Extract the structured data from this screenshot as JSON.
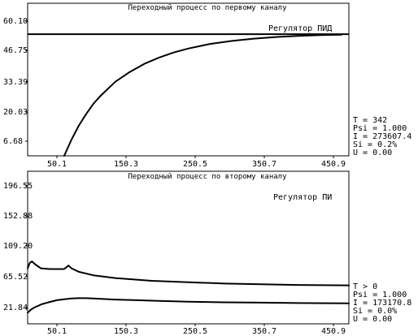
{
  "chart_data": [
    {
      "type": "line",
      "title": "Переходный процесс по первому каналу",
      "regulator": "Регулятор  ПИД",
      "y_ticks": [
        "60.10",
        "46.75",
        "33.39",
        "20.03",
        "6.68"
      ],
      "x_ticks": [
        "50.1",
        "150.3",
        "250.5",
        "350.7",
        "450.9"
      ],
      "xlim": [
        30,
        470
      ],
      "ylim": [
        -3,
        63
      ],
      "reference": 49.6,
      "series": [
        {
          "x": [
            80,
            90,
            100,
            110,
            120,
            130,
            150,
            170,
            190,
            210,
            230,
            250,
            280,
            310,
            340,
            370,
            400,
            430,
            460
          ],
          "y": [
            -3,
            4,
            10,
            15,
            19.5,
            23,
            29,
            33.3,
            36.8,
            39.5,
            41.7,
            43.4,
            45.4,
            46.7,
            47.7,
            48.4,
            48.9,
            49.2,
            49.4
          ]
        }
      ],
      "stats": {
        "T": "T = 342",
        "Psi": "Psi = 1.000",
        "I": "I = 273607.4",
        "Si": "Si = 0.2%",
        "U": "U = 0.00"
      }
    },
    {
      "type": "line",
      "title": "Переходный процесс по второму каналу",
      "regulator": "Регулятор  ПИ",
      "y_ticks": [
        "196.55",
        "152.88",
        "109.20",
        "65.52",
        "21.84"
      ],
      "x_ticks": [
        "50.1",
        "150.3",
        "250.5",
        "350.7",
        "450.9"
      ],
      "xlim": [
        30,
        470
      ],
      "ylim": [
        0,
        220
      ],
      "series": [
        {
          "x": [
            30,
            33,
            36,
            40,
            48,
            60,
            80,
            86,
            90,
            100,
            120,
            150,
            200,
            250,
            300,
            350,
            400,
            470
          ],
          "y": [
            80,
            88,
            90,
            86,
            80,
            79,
            79,
            84,
            80,
            75,
            70,
            66,
            62,
            60,
            58,
            57,
            56,
            55.5
          ]
        },
        {
          "x": [
            30,
            35,
            40,
            50,
            60,
            70,
            80,
            90,
            100,
            110,
            120,
            130,
            150,
            180,
            210,
            250,
            300,
            350,
            400,
            470
          ],
          "y": [
            16,
            21,
            24,
            28.5,
            31.5,
            34,
            35.5,
            36.5,
            37,
            37,
            36.5,
            36,
            35,
            34,
            33,
            32,
            31,
            30.5,
            30,
            29.5
          ]
        }
      ],
      "stats": {
        "T": "T > 0",
        "Psi": "Psi = 1.000",
        "I": "I = 173170.8",
        "Si": "Si = 0.0%",
        "U": "U = 0.00"
      }
    }
  ]
}
